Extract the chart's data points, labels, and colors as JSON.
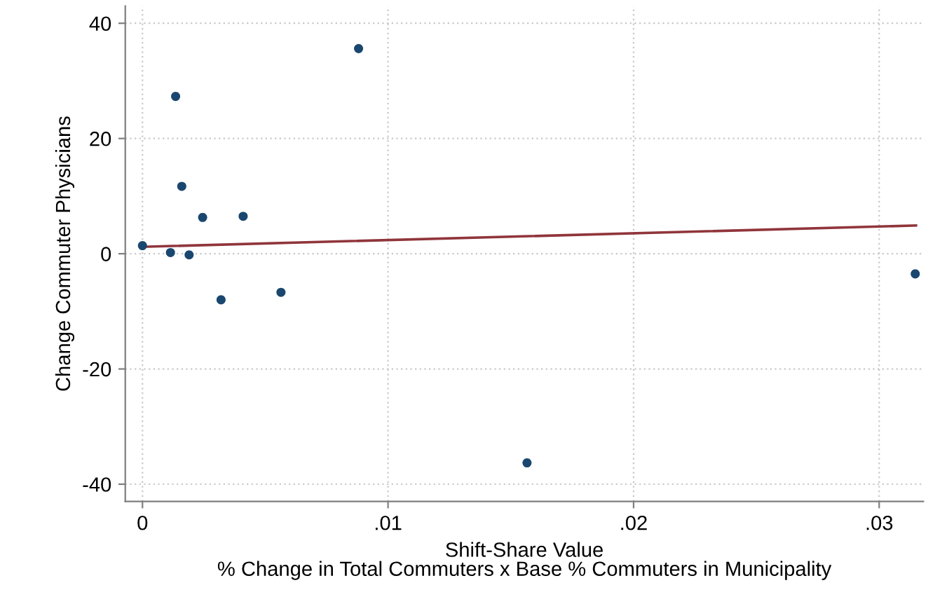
{
  "chart_data": {
    "type": "scatter",
    "xlabel": "Shift-Share Value\n% Change in Total Commuters x Base % Commuters in Municipality",
    "ylabel": "Change Commuter Physicians",
    "series": [
      {
        "marker": "circle",
        "color": "#1a476f",
        "x": [
          0,
          0.00114,
          0.00135,
          0.0016,
          0.0019,
          0.00245,
          0.0032,
          0.0041,
          0.00564,
          0.0088,
          0.01566,
          0.03147
        ],
        "values": [
          1.4,
          0.2,
          27.3,
          11.7,
          -0.2,
          6.3,
          -8.0,
          6.5,
          -6.7,
          35.6,
          -36.3,
          -3.5
        ]
      },
      {
        "type": "line",
        "marker": "none",
        "color": "#90353b",
        "x": [
          0,
          0.0315
        ],
        "values": [
          1.2,
          4.9
        ]
      }
    ],
    "xlim": [
      -0.0007,
      0.0318
    ],
    "ylim": [
      -43,
      43
    ],
    "xticks": [
      0,
      {
        "value": 0.01,
        "label": ".01"
      },
      {
        "value": 0.02,
        "label": ".02"
      },
      {
        "value": 0.03,
        "label": ".03"
      }
    ],
    "yticks": [
      -40,
      -20,
      0,
      20,
      40
    ],
    "grid": true
  }
}
